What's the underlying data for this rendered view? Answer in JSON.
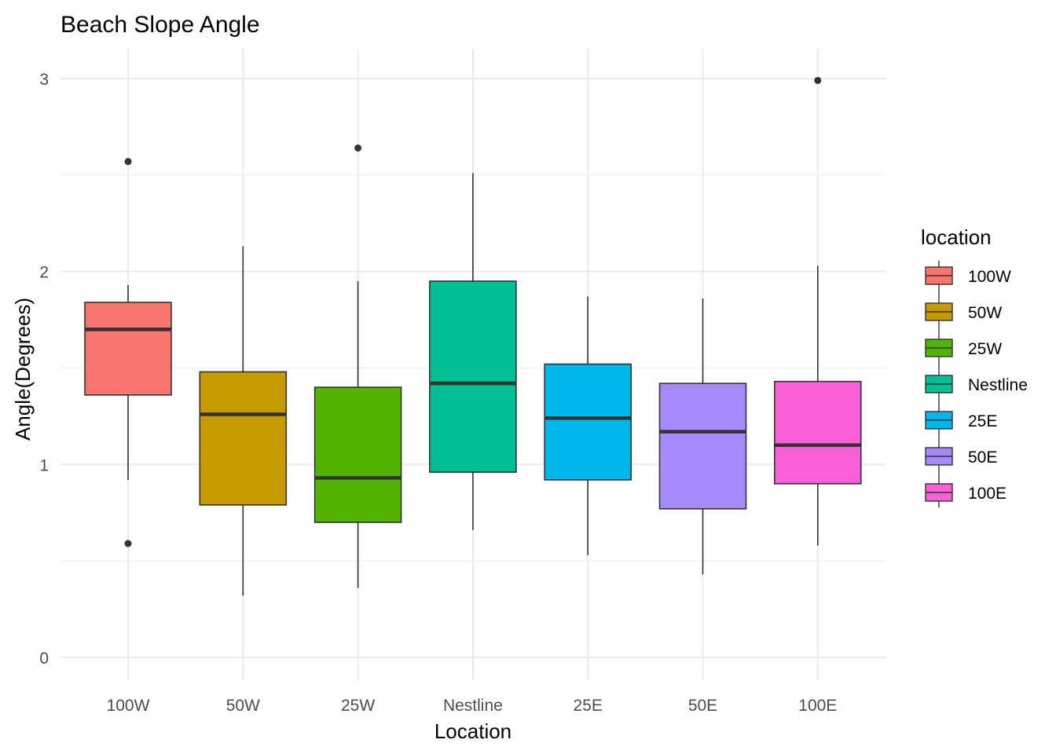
{
  "chart_data": {
    "type": "boxplot",
    "title": "Beach Slope Angle",
    "xlabel": "Location",
    "ylabel": "Angle(Degrees)",
    "ylim": [
      -0.12,
      3.15
    ],
    "yticks": [
      0,
      1,
      2,
      3
    ],
    "grid": true,
    "legend": {
      "title": "location",
      "position": "right"
    },
    "categories": [
      "100W",
      "50W",
      "25W",
      "Nestline",
      "25E",
      "50E",
      "100E"
    ],
    "colors": [
      "#F8766D",
      "#C49A00",
      "#53B400",
      "#00C094",
      "#00B6EB",
      "#A58AFF",
      "#FB61D7"
    ],
    "boxes": [
      {
        "name": "100W",
        "whisker_low": 0.92,
        "q1": 1.36,
        "median": 1.7,
        "q3": 1.84,
        "whisker_high": 1.93,
        "outliers": [
          2.57,
          0.59
        ]
      },
      {
        "name": "50W",
        "whisker_low": 0.32,
        "q1": 0.79,
        "median": 1.26,
        "q3": 1.48,
        "whisker_high": 2.13,
        "outliers": []
      },
      {
        "name": "25W",
        "whisker_low": 0.36,
        "q1": 0.7,
        "median": 0.93,
        "q3": 1.4,
        "whisker_high": 1.95,
        "outliers": [
          2.64
        ]
      },
      {
        "name": "Nestline",
        "whisker_low": 0.66,
        "q1": 0.96,
        "median": 1.42,
        "q3": 1.95,
        "whisker_high": 2.51,
        "outliers": []
      },
      {
        "name": "25E",
        "whisker_low": 0.53,
        "q1": 0.92,
        "median": 1.24,
        "q3": 1.52,
        "whisker_high": 1.87,
        "outliers": []
      },
      {
        "name": "50E",
        "whisker_low": 0.43,
        "q1": 0.77,
        "median": 1.17,
        "q3": 1.42,
        "whisker_high": 1.86,
        "outliers": []
      },
      {
        "name": "100E",
        "whisker_low": 0.58,
        "q1": 0.9,
        "median": 1.1,
        "q3": 1.43,
        "whisker_high": 2.03,
        "outliers": [
          2.99
        ]
      }
    ]
  }
}
